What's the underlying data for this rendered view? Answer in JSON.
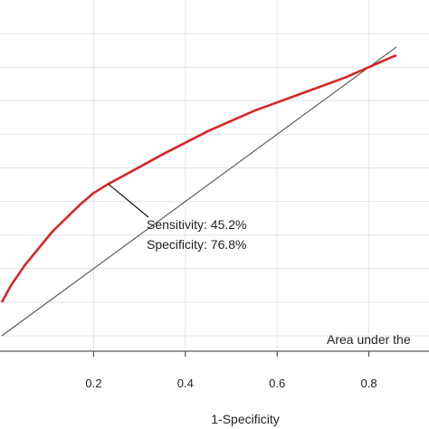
{
  "chart_data": {
    "type": "line",
    "xlabel": "1-Specificity",
    "ylabel": "",
    "xlim": [
      0.0,
      0.86
    ],
    "ylim": [
      0.0,
      0.87
    ],
    "x_ticks": [
      0.2,
      0.4,
      0.6,
      0.8
    ],
    "x_tick_labels": [
      "0.2",
      "0.4",
      "0.6",
      "0.8"
    ],
    "grid": "horizontal and vertical, light gray",
    "series": [
      {
        "color": "#d62728",
        "x": [
          0.0,
          0.02,
          0.05,
          0.08,
          0.11,
          0.14,
          0.17,
          0.2,
          0.232,
          0.27,
          0.31,
          0.35,
          0.4,
          0.45,
          0.5,
          0.55,
          0.6,
          0.65,
          0.7,
          0.75,
          0.8,
          0.85,
          0.86
        ],
        "y": [
          0.1,
          0.15,
          0.21,
          0.26,
          0.31,
          0.35,
          0.39,
          0.425,
          0.452,
          0.48,
          0.51,
          0.54,
          0.575,
          0.61,
          0.64,
          0.67,
          0.695,
          0.72,
          0.745,
          0.77,
          0.8,
          0.83,
          0.835
        ]
      },
      {
        "color": "#555555",
        "x": [
          0.0,
          0.86
        ],
        "y": [
          0.0,
          0.86
        ]
      }
    ],
    "annotations": {
      "sensitivity": "Sensitivity: 45.2%",
      "specificity": "Specificity: 76.8%",
      "area": "Area under the",
      "point": {
        "x": 0.232,
        "y": 0.452
      }
    }
  }
}
